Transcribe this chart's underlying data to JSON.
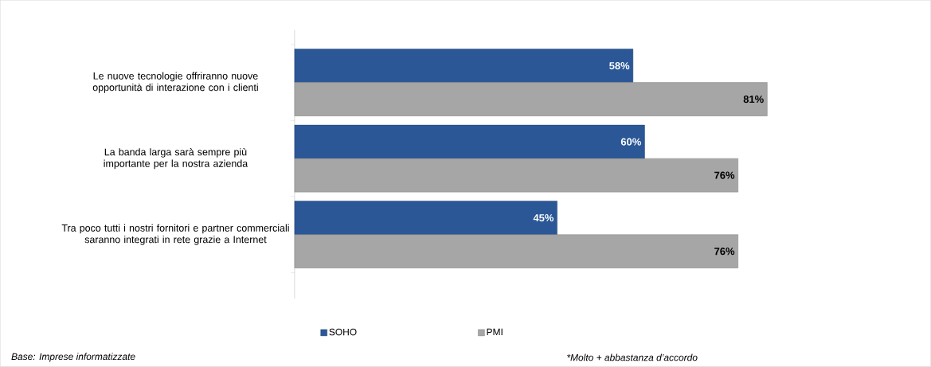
{
  "chart_data": {
    "type": "bar",
    "orientation": "horizontal",
    "categories": [
      "Le nuove tecnologie offriranno nuove opportunità di interazione con i clienti",
      "La banda larga sarà sempre più importante per la nostra azienda",
      "Tra poco tutti i nostri fornitori e partner commerciali saranno integrati in rete grazie a Internet"
    ],
    "series": [
      {
        "name": "SOHO",
        "color": "#2b5797",
        "values": [
          58,
          60,
          45
        ],
        "value_labels": [
          "58%",
          "60%",
          "45%"
        ]
      },
      {
        "name": "PMI",
        "color": "#a6a6a6",
        "values": [
          81,
          76,
          76
        ],
        "value_labels": [
          "81%",
          "76%",
          "76%"
        ]
      }
    ],
    "legend": "bottom",
    "annotations": [
      "Base: Imprese informatizzate",
      "*Molto + abbastanza d’accordo"
    ]
  }
}
